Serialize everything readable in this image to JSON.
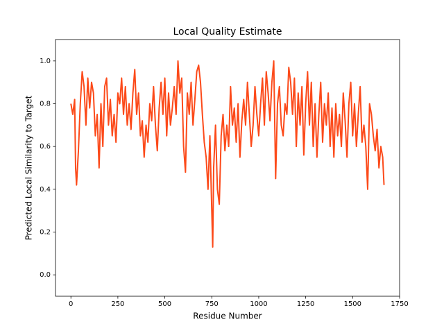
{
  "chart_data": {
    "type": "line",
    "title": "Local Quality Estimate",
    "x_label": "Residue Number",
    "y_label": "Predicted Local Similarity to Target",
    "x": [
      0,
      10,
      20,
      25,
      30,
      40,
      50,
      60,
      70,
      80,
      90,
      100,
      110,
      120,
      130,
      140,
      150,
      160,
      170,
      180,
      190,
      200,
      210,
      220,
      230,
      240,
      250,
      260,
      270,
      280,
      290,
      300,
      310,
      320,
      330,
      340,
      350,
      360,
      370,
      380,
      390,
      400,
      410,
      420,
      430,
      440,
      450,
      460,
      470,
      480,
      490,
      500,
      510,
      520,
      530,
      540,
      550,
      560,
      570,
      580,
      590,
      600,
      610,
      620,
      630,
      640,
      650,
      660,
      670,
      680,
      690,
      700,
      710,
      720,
      730,
      740,
      750,
      755,
      760,
      770,
      780,
      790,
      800,
      810,
      820,
      830,
      840,
      850,
      860,
      870,
      880,
      890,
      900,
      910,
      920,
      930,
      940,
      950,
      960,
      970,
      980,
      990,
      1000,
      1010,
      1020,
      1030,
      1040,
      1050,
      1060,
      1070,
      1080,
      1090,
      1100,
      1110,
      1120,
      1130,
      1140,
      1150,
      1160,
      1170,
      1180,
      1190,
      1200,
      1210,
      1220,
      1230,
      1240,
      1250,
      1260,
      1270,
      1280,
      1290,
      1300,
      1310,
      1320,
      1330,
      1340,
      1350,
      1360,
      1370,
      1380,
      1390,
      1400,
      1410,
      1420,
      1430,
      1440,
      1450,
      1460,
      1470,
      1480,
      1490,
      1500,
      1510,
      1520,
      1530,
      1540,
      1550,
      1560,
      1570,
      1580,
      1590,
      1600,
      1610,
      1620,
      1630,
      1640,
      1650,
      1660,
      1667
    ],
    "series": [
      {
        "color": "#fc4a1a",
        "values": [
          0.8,
          0.75,
          0.82,
          0.5,
          0.42,
          0.58,
          0.8,
          0.95,
          0.88,
          0.7,
          0.92,
          0.78,
          0.9,
          0.85,
          0.65,
          0.75,
          0.5,
          0.8,
          0.6,
          0.88,
          0.92,
          0.7,
          0.82,
          0.65,
          0.75,
          0.62,
          0.85,
          0.8,
          0.92,
          0.75,
          0.88,
          0.7,
          0.8,
          0.68,
          0.85,
          0.96,
          0.75,
          0.85,
          0.65,
          0.72,
          0.55,
          0.7,
          0.62,
          0.8,
          0.72,
          0.88,
          0.7,
          0.58,
          0.78,
          0.9,
          0.75,
          0.92,
          0.65,
          0.85,
          0.7,
          0.78,
          0.88,
          0.75,
          1.0,
          0.85,
          0.92,
          0.6,
          0.48,
          0.85,
          0.75,
          0.9,
          0.7,
          0.82,
          0.95,
          0.98,
          0.9,
          0.75,
          0.62,
          0.55,
          0.4,
          0.65,
          0.3,
          0.13,
          0.5,
          0.7,
          0.4,
          0.33,
          0.65,
          0.75,
          0.58,
          0.7,
          0.6,
          0.88,
          0.7,
          0.78,
          0.62,
          0.8,
          0.55,
          0.72,
          0.82,
          0.7,
          0.9,
          0.75,
          0.6,
          0.7,
          0.88,
          0.75,
          0.65,
          0.8,
          0.92,
          0.7,
          0.95,
          0.85,
          0.72,
          0.9,
          1.0,
          0.45,
          0.8,
          0.88,
          0.7,
          0.65,
          0.8,
          0.75,
          0.97,
          0.9,
          0.75,
          0.92,
          0.6,
          0.85,
          0.7,
          0.88,
          0.56,
          0.8,
          0.95,
          0.7,
          0.9,
          0.6,
          0.8,
          0.55,
          0.75,
          0.9,
          0.62,
          0.8,
          0.7,
          0.85,
          0.6,
          0.78,
          0.55,
          0.8,
          0.65,
          0.75,
          0.6,
          0.85,
          0.72,
          0.55,
          0.8,
          0.9,
          0.65,
          0.8,
          0.6,
          0.75,
          0.88,
          0.62,
          0.7,
          0.6,
          0.4,
          0.8,
          0.75,
          0.65,
          0.58,
          0.68,
          0.5,
          0.6,
          0.55,
          0.42
        ]
      }
    ],
    "xlim": [
      -82,
      1750
    ],
    "xticks": [
      0,
      250,
      500,
      750,
      1000,
      1250,
      1500,
      1750
    ],
    "ylim": [
      -0.1,
      1.1
    ],
    "yticks": [
      {
        "value": 0,
        "label": "0.0"
      },
      0.2,
      0.4,
      0.6,
      0.8,
      {
        "value": 1,
        "label": "1.0"
      }
    ]
  }
}
